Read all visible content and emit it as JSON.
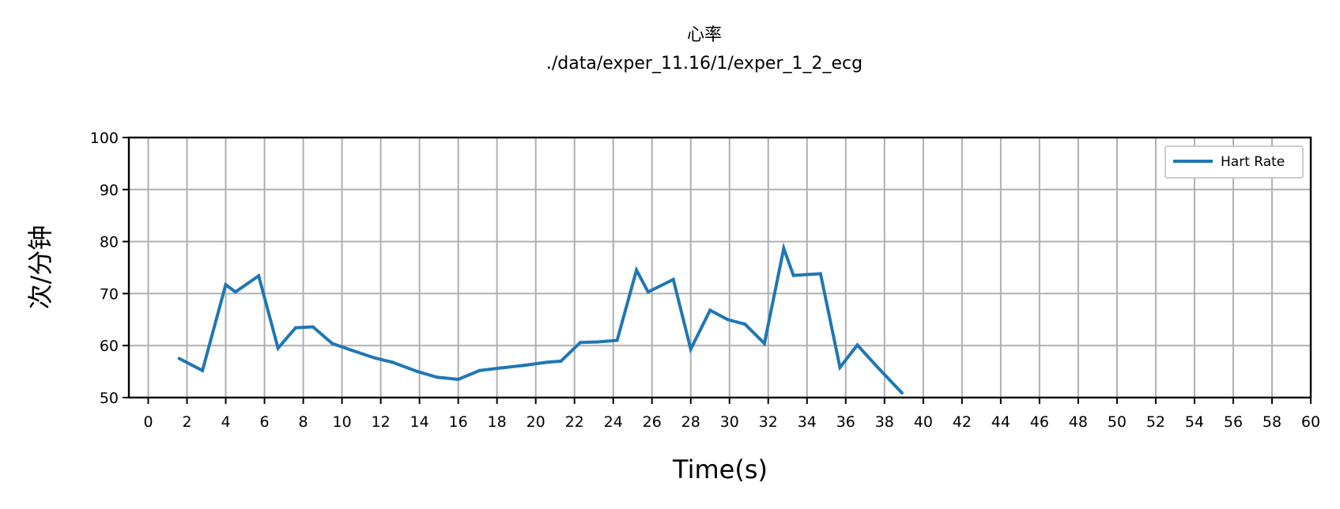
{
  "chart_data": {
    "type": "line",
    "title": "心率",
    "subtitle": "./data/exper_11.16/1/exper_1_2_ecg",
    "xlabel": "Time(s)",
    "ylabel": "次/分钟",
    "xlim": [
      -1,
      60
    ],
    "ylim": [
      50,
      100
    ],
    "xticks": [
      0,
      2,
      4,
      6,
      8,
      10,
      12,
      14,
      16,
      18,
      20,
      22,
      24,
      26,
      28,
      30,
      32,
      34,
      36,
      38,
      40,
      42,
      44,
      46,
      48,
      50,
      52,
      54,
      56,
      58,
      60
    ],
    "yticks": [
      50,
      60,
      70,
      80,
      90,
      100
    ],
    "grid": true,
    "legend_position": "top-right",
    "series": [
      {
        "name": "Hart Rate",
        "color": "#1f77b4",
        "x": [
          1.6,
          2.8,
          4.0,
          4.5,
          5.7,
          6.7,
          7.6,
          8.5,
          9.5,
          10.5,
          11.7,
          12.6,
          13.9,
          14.9,
          16.0,
          17.1,
          18.2,
          19.4,
          20.6,
          21.3,
          22.3,
          23.2,
          24.2,
          25.2,
          25.8,
          27.1,
          28.0,
          29.0,
          29.9,
          30.8,
          31.8,
          32.8,
          33.3,
          34.7,
          35.7,
          36.6,
          37.6,
          38.9
        ],
        "y": [
          57.5,
          55.2,
          71.7,
          70.3,
          73.4,
          59.5,
          63.4,
          63.6,
          60.4,
          59.1,
          57.6,
          56.8,
          55.0,
          53.9,
          53.5,
          55.2,
          55.7,
          56.2,
          56.8,
          57.0,
          60.6,
          60.7,
          61.0,
          74.5,
          70.3,
          72.7,
          59.3,
          66.8,
          65.0,
          64.1,
          60.4,
          78.7,
          73.5,
          73.8,
          55.8,
          60.1,
          56.0,
          50.9
        ]
      }
    ]
  }
}
